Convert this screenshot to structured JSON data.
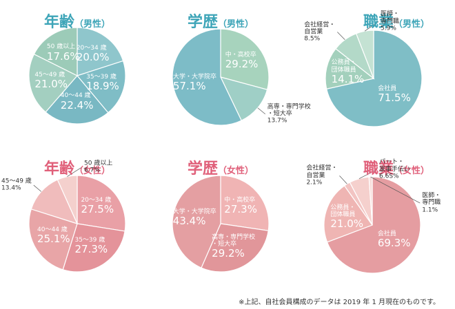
{
  "chart_data": [
    {
      "type": "pie",
      "title": "年齢",
      "subtitle": "（男性）",
      "title_color": "#3ea5b8",
      "categories": [
        "20～34 歳",
        "35～39 歳",
        "40～44 歳",
        "45～49 歳",
        "50 歳以上"
      ],
      "values": [
        20.0,
        18.9,
        22.4,
        21.0,
        17.6
      ],
      "value_labels": [
        "20.0%",
        "18.9%",
        "22.4%",
        "21.0%",
        "17.6%"
      ],
      "colors": [
        "#8fc6cc",
        "#7fbdc6",
        "#79b8c3",
        "#a3cfc0",
        "#9ccbb8"
      ]
    },
    {
      "type": "pie",
      "title": "学歴",
      "subtitle": "（男性）",
      "title_color": "#3ea5b8",
      "categories": [
        "中・高校卒",
        "高専・専門学校\n・短大卒",
        "大学・大学院卒"
      ],
      "values": [
        29.2,
        13.7,
        57.1
      ],
      "value_labels": [
        "29.2%",
        "13.7%",
        "57.1%"
      ],
      "colors": [
        "#a7d3bd",
        "#9fcfc6",
        "#7dbcc7"
      ]
    },
    {
      "type": "pie",
      "title": "職業",
      "subtitle": "（男性）",
      "title_color": "#3ea5b8",
      "categories": [
        "会社員",
        "公務員・\n団体職員",
        "会社経営・\n自営業",
        "医師・\n専門職"
      ],
      "values": [
        71.5,
        14.1,
        8.5,
        5.9
      ],
      "value_labels": [
        "71.5%",
        "14.1%",
        "8.5%",
        "5.9%"
      ],
      "colors": [
        "#7fbec6",
        "#a3d0bc",
        "#b3d9c8",
        "#c4e2d3"
      ]
    },
    {
      "type": "pie",
      "title": "年齢",
      "subtitle": "（女性）",
      "title_color": "#e0607a",
      "categories": [
        "20～34 歳",
        "35～39 歳",
        "40～44 歳",
        "45～49 歳",
        "50 歳以上"
      ],
      "values": [
        27.5,
        27.3,
        25.1,
        13.4,
        6.7
      ],
      "value_labels": [
        "27.5%",
        "27.3%",
        "25.1%",
        "13.4%",
        "6.7%"
      ],
      "colors": [
        "#e9a0a6",
        "#e4939a",
        "#e8a5a7",
        "#f0bcbc",
        "#f4d0cd"
      ]
    },
    {
      "type": "pie",
      "title": "学歴",
      "subtitle": "（女性）",
      "title_color": "#e0607a",
      "categories": [
        "中・高校卒",
        "高専・専門学校\n・短大卒",
        "大学・大学院卒"
      ],
      "values": [
        27.3,
        29.2,
        43.4
      ],
      "value_labels": [
        "27.3%",
        "29.2%",
        "43.4%"
      ],
      "colors": [
        "#f0b4b4",
        "#e1969a",
        "#e49fa2"
      ]
    },
    {
      "type": "pie",
      "title": "職業",
      "subtitle": "（女性）",
      "title_color": "#e0607a",
      "categories": [
        "会社員",
        "公務員・\n団体職員",
        "会社経営・\n自営業",
        "パート・\n家事手伝い",
        "医師・\n専門職"
      ],
      "values": [
        69.3,
        21.0,
        2.1,
        6.6,
        1.1
      ],
      "value_labels": [
        "69.3%",
        "21.0%",
        "2.1%",
        "6.6S%",
        "1.1%"
      ],
      "colors": [
        "#e59da1",
        "#efb5b3",
        "#f2c4c2",
        "#f5d0cd",
        "#f8dedb"
      ]
    }
  ],
  "footnote": "※上記、自社会員構成のデータは 2019 年 1 月現在のものです。"
}
